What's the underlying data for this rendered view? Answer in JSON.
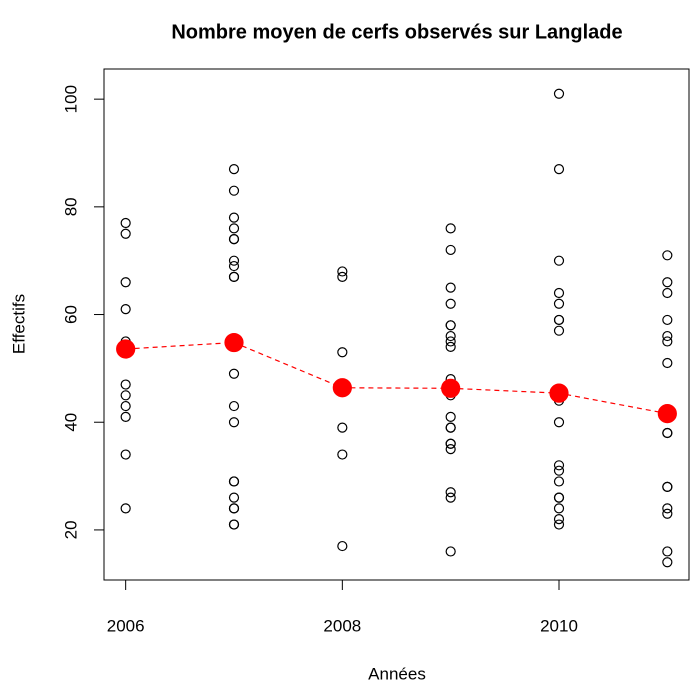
{
  "chart_data": {
    "type": "scatter",
    "title": "Nombre moyen de cerfs observés sur Langlade",
    "x_label": "Années",
    "y_label": "Effectifs",
    "xlim": [
      2005.8,
      2011.2
    ],
    "ylim": [
      10.7,
      105.6
    ],
    "xticks": [
      2006,
      2008,
      2010
    ],
    "yticks": [
      20,
      40,
      60,
      80,
      100
    ],
    "grid": false,
    "series": [
      {
        "color": "#000000",
        "marker": "open",
        "x": [
          2006,
          2006,
          2006,
          2006,
          2006,
          2006,
          2006,
          2006,
          2006,
          2006,
          2006,
          2006,
          2007,
          2007,
          2007,
          2007,
          2007,
          2007,
          2007,
          2007,
          2007,
          2007,
          2007,
          2007,
          2007,
          2007,
          2007,
          2007,
          2007,
          2007,
          2007,
          2007,
          2008,
          2008,
          2008,
          2008,
          2008,
          2008,
          2009,
          2009,
          2009,
          2009,
          2009,
          2009,
          2009,
          2009,
          2009,
          2009,
          2009,
          2009,
          2009,
          2009,
          2009,
          2009,
          2009,
          2009,
          2009,
          2009,
          2009,
          2009,
          2010,
          2010,
          2010,
          2010,
          2010,
          2010,
          2010,
          2010,
          2010,
          2010,
          2010,
          2010,
          2010,
          2010,
          2010,
          2010,
          2010,
          2010,
          2010,
          2010,
          2011,
          2011,
          2011,
          2011,
          2011,
          2011,
          2011,
          2011,
          2011,
          2011,
          2011,
          2011,
          2011,
          2011,
          2011
        ],
        "values": [
          77,
          75,
          66,
          61,
          55,
          54,
          47,
          45,
          43,
          41,
          34,
          24,
          87,
          83,
          78,
          76,
          74,
          74,
          70,
          69,
          67,
          67,
          49,
          43,
          40,
          29,
          29,
          26,
          24,
          24,
          21,
          21,
          68,
          67,
          53,
          39,
          34,
          17,
          76,
          72,
          65,
          62,
          58,
          58,
          56,
          55,
          54,
          48,
          47,
          46,
          45,
          41,
          39,
          39,
          36,
          36,
          35,
          27,
          26,
          16,
          101,
          87,
          70,
          64,
          62,
          59,
          59,
          57,
          46,
          45,
          44,
          40,
          32,
          31,
          29,
          26,
          26,
          24,
          22,
          21,
          71,
          66,
          64,
          59,
          56,
          55,
          51,
          38,
          38,
          28,
          28,
          24,
          23,
          16,
          14
        ]
      },
      {
        "color": "#ff0000",
        "marker": "filled",
        "line": "dashed",
        "x": [
          2006,
          2007,
          2008,
          2009,
          2010,
          2011
        ],
        "values": [
          53.6,
          54.8,
          46.4,
          46.3,
          45.4,
          41.6
        ]
      }
    ]
  }
}
